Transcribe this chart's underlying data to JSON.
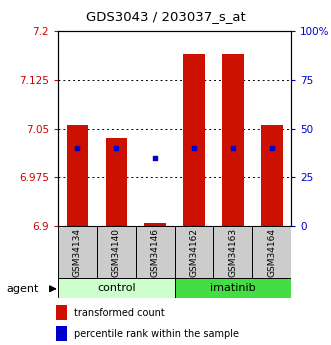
{
  "title": "GDS3043 / 203037_s_at",
  "samples": [
    "GSM34134",
    "GSM34140",
    "GSM34146",
    "GSM34162",
    "GSM34163",
    "GSM34164"
  ],
  "bar_color": "#cc1100",
  "dot_color": "#0000cc",
  "ylim_left": [
    6.9,
    7.2
  ],
  "ylim_right": [
    0,
    100
  ],
  "yticks_left": [
    6.9,
    6.975,
    7.05,
    7.125,
    7.2
  ],
  "ytick_labels_left": [
    "6.9",
    "6.975",
    "7.05",
    "7.125",
    "7.2"
  ],
  "yticks_right": [
    0,
    25,
    50,
    75,
    100
  ],
  "ytick_labels_right": [
    "0",
    "25",
    "50",
    "75",
    "100%"
  ],
  "bar_tops": [
    7.055,
    7.035,
    6.905,
    7.165,
    7.165,
    7.055
  ],
  "dot_percentiles": [
    40,
    40,
    35,
    40,
    40,
    40
  ],
  "bar_width": 0.55,
  "left_axis_color": "#cc0000",
  "right_axis_color": "#0000cc",
  "sample_area_color": "#cccccc",
  "control_color": "#ccffcc",
  "imatinib_color": "#44dd44",
  "legend_items": [
    {
      "label": "transformed count",
      "color": "#cc1100"
    },
    {
      "label": "percentile rank within the sample",
      "color": "#0000cc"
    }
  ]
}
